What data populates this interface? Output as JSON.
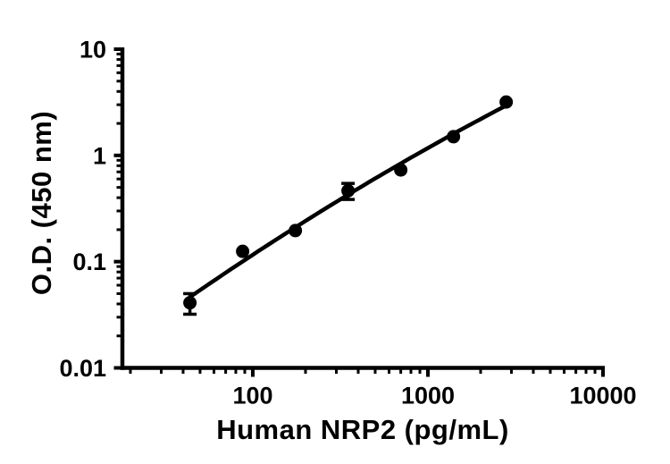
{
  "figure": {
    "background": "#ffffff",
    "axis_color": "#000000",
    "marker_color": "#000000",
    "curve_color": "#000000"
  },
  "chart_data": {
    "type": "scatter",
    "title": "",
    "xlabel": "Human NRP2 (pg/mL)",
    "ylabel": "O.D. (450 nm)",
    "x_scale": "log",
    "y_scale": "log",
    "xlim": [
      18,
      10000
    ],
    "ylim": [
      0.01,
      10
    ],
    "x_major_ticks": [
      100,
      1000,
      10000
    ],
    "x_tick_labels": [
      "100",
      "1000",
      "10000"
    ],
    "y_major_ticks": [
      10,
      1,
      0.1,
      0.01
    ],
    "y_tick_labels": [
      "10",
      "1",
      "0.1",
      "0.01"
    ],
    "grid": false,
    "legend": null,
    "series": [
      {
        "marker": "circle",
        "points": [
          {
            "x": 43.75,
            "y": 0.041,
            "err": 0.009
          },
          {
            "x": 87.5,
            "y": 0.125,
            "err": 0
          },
          {
            "x": 175,
            "y": 0.196,
            "err": 0
          },
          {
            "x": 350,
            "y": 0.465,
            "err": 0.08
          },
          {
            "x": 700,
            "y": 0.73,
            "err": 0
          },
          {
            "x": 1400,
            "y": 1.5,
            "err": 0
          },
          {
            "x": 2800,
            "y": 3.18,
            "err": 0
          }
        ]
      }
    ],
    "fit_curve": {
      "type": "quadratic-loglog",
      "b0": -0.37,
      "b1": 0.998,
      "b2": -0.076,
      "u_center": 2.544,
      "x_range": [
        43.75,
        2800
      ]
    }
  }
}
